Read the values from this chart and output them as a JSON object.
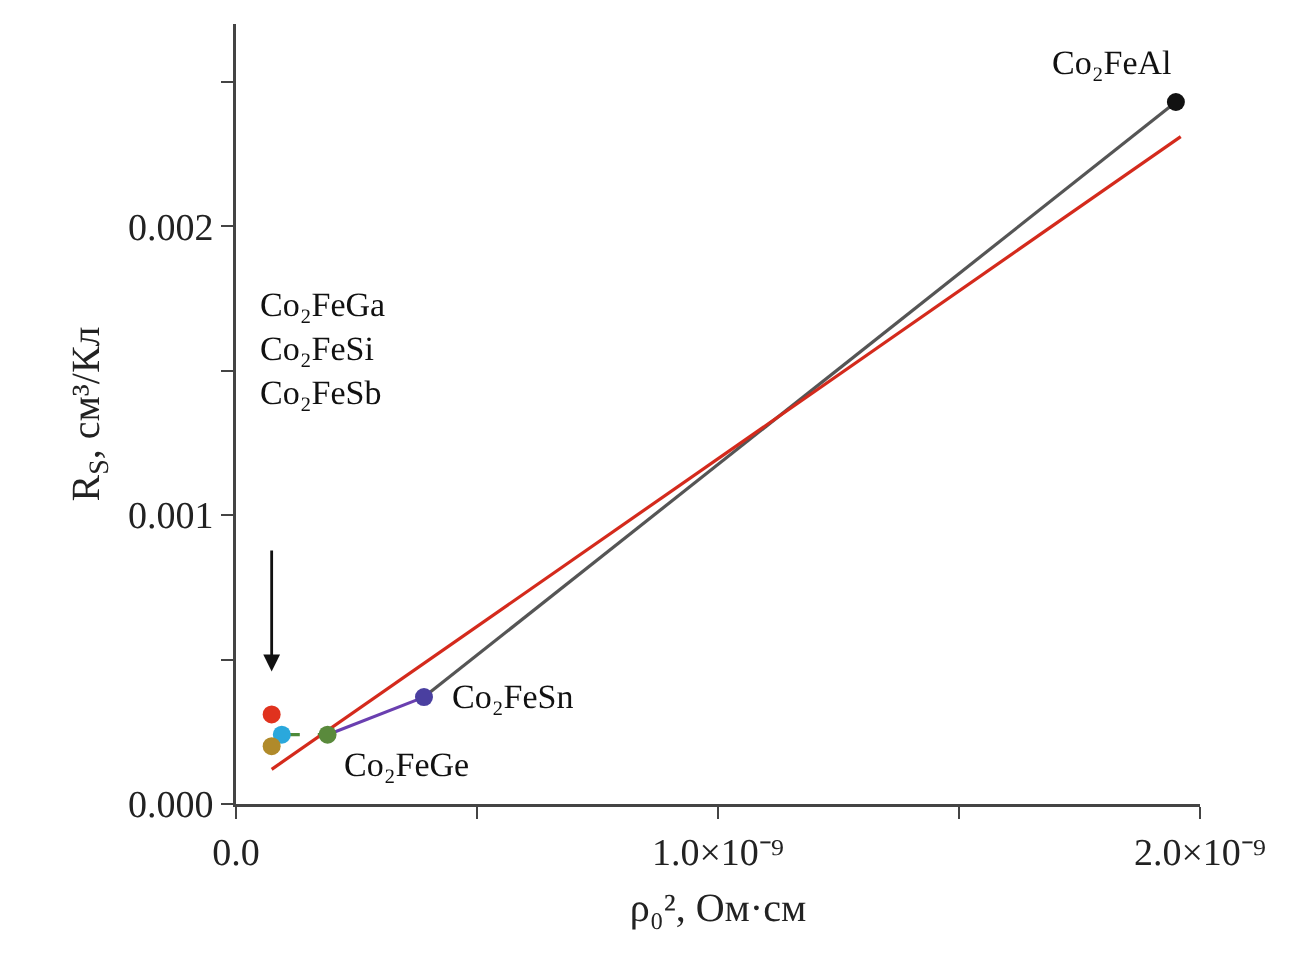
{
  "chart_data": {
    "type": "scatter",
    "xlabel": "ρ₀², Ом·см",
    "ylabel": "R$_{S}$, см³/Кл",
    "xlim": [
      0,
      2e-09
    ],
    "xticks": [
      {
        "value": 0,
        "label": "0.0"
      },
      {
        "value": 5e-10,
        "label": null
      },
      {
        "value": 1e-09,
        "label": "1.0×10⁻⁹"
      },
      {
        "value": 1.5e-09,
        "label": null
      },
      {
        "value": 2e-09,
        "label": "2.0×10⁻⁹"
      }
    ],
    "ylim": [
      0,
      0.0027
    ],
    "yticks": [
      {
        "value": 0,
        "label": "0.000"
      },
      {
        "value": 0.0005,
        "label": null
      },
      {
        "value": 0.001,
        "label": "0.001"
      },
      {
        "value": 0.0015,
        "label": null
      },
      {
        "value": 0.002,
        "label": "0.002"
      },
      {
        "value": 0.0025,
        "label": null
      }
    ],
    "grid": false,
    "series": [
      {
        "type": "line",
        "color": "#555555",
        "line_style": "solid",
        "x": [
          3.9e-10,
          1.95e-09
        ],
        "values": [
          0.00037,
          0.00243
        ]
      },
      {
        "type": "line",
        "color": "#6a3fb0",
        "line_style": "solid",
        "x": [
          1.9e-10,
          3.9e-10
        ],
        "values": [
          0.00024,
          0.00037
        ]
      },
      {
        "type": "line",
        "color": "#4e8a3a",
        "line_style": "dashed",
        "x": [
          9.5e-11,
          1.9e-10
        ],
        "values": [
          0.00024,
          0.00024
        ]
      },
      {
        "type": "line",
        "color": "#d42a1c",
        "line_style": "solid",
        "x": [
          7.4e-11,
          1.96e-09
        ],
        "values": [
          0.00012,
          0.00231
        ]
      },
      {
        "marker": "circle",
        "color": "#111111",
        "x": [
          1.95e-09
        ],
        "values": [
          0.00243
        ]
      },
      {
        "marker": "circle",
        "color": "#4a3fa0",
        "x": [
          3.9e-10
        ],
        "values": [
          0.00037
        ]
      },
      {
        "marker": "circle",
        "color": "#5a8a3c",
        "x": [
          1.9e-10
        ],
        "values": [
          0.00024
        ]
      },
      {
        "marker": "circle",
        "color": "#e0321e",
        "x": [
          7.4e-11
        ],
        "values": [
          0.00031
        ]
      },
      {
        "marker": "circle",
        "color": "#2aa8dc",
        "x": [
          9.5e-11
        ],
        "values": [
          0.00024
        ]
      },
      {
        "marker": "circle",
        "color": "#b08a2a",
        "x": [
          7.4e-11
        ],
        "values": [
          0.0002
        ]
      }
    ],
    "annotations": [
      {
        "text": "Co₂FeAl",
        "x": 1.95e-09,
        "y": 0.00243
      },
      {
        "text": "Co₂FeSn",
        "x": 3.9e-10,
        "y": 0.00037
      },
      {
        "text": "Co₂FeGe",
        "x": 1.9e-10,
        "y": 0.00024
      },
      "Co₂FeGa\nCo₂FeSi\nCo₂FeSb"
    ]
  }
}
